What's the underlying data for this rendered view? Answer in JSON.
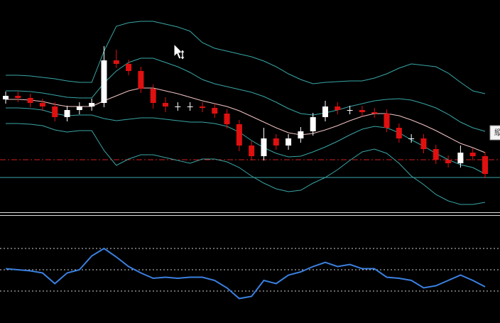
{
  "chart_data": [
    {
      "type": "candlestick",
      "ylim": [
        0,
        300
      ],
      "up_color": "#ffffff",
      "down_color": "#e01010",
      "open": [
        160,
        165,
        162,
        155,
        150,
        135,
        145,
        150,
        155,
        215,
        210,
        200,
        175,
        155,
        150,
        150,
        150,
        148,
        140,
        125,
        95,
        80,
        105,
        95,
        105,
        115,
        135,
        150,
        145,
        145,
        142,
        140,
        120,
        105,
        105,
        90,
        75,
        70,
        85,
        80
      ],
      "high": [
        171,
        171,
        168,
        161,
        156,
        151,
        156,
        161,
        235,
        230,
        216,
        206,
        181,
        163,
        156,
        156,
        156,
        154,
        146,
        131,
        101,
        120,
        111,
        111,
        121,
        141,
        158,
        156,
        151,
        151,
        148,
        146,
        126,
        111,
        111,
        96,
        81,
        95,
        91,
        86
      ],
      "low": [
        154,
        156,
        149,
        144,
        129,
        129,
        139,
        144,
        149,
        204,
        194,
        169,
        147,
        142,
        144,
        144,
        142,
        134,
        119,
        87,
        74,
        74,
        89,
        89,
        99,
        109,
        129,
        139,
        139,
        136,
        134,
        114,
        99,
        99,
        84,
        69,
        64,
        64,
        74,
        49
      ],
      "close": [
        165,
        162,
        155,
        150,
        135,
        145,
        150,
        155,
        215,
        210,
        200,
        175,
        155,
        150,
        150,
        150,
        148,
        140,
        125,
        95,
        80,
        105,
        95,
        105,
        115,
        135,
        150,
        145,
        145,
        142,
        140,
        120,
        105,
        105,
        90,
        75,
        70,
        85,
        80,
        55
      ],
      "series": [
        {
          "color": "#f2c4c4",
          "values": [
            160,
            160,
            159,
            157,
            153,
            150,
            150,
            150,
            158,
            165,
            172,
            176,
            176,
            172,
            168,
            163,
            158,
            154,
            150,
            144,
            136,
            128,
            120,
            113,
            110,
            112,
            117,
            123,
            130,
            136,
            140,
            140,
            137,
            131,
            124,
            116,
            107,
            98,
            92,
            85
          ]
        },
        {
          "color": "#3aa6a6",
          "values": [
            172,
            172,
            171,
            169,
            166,
            163,
            162,
            162,
            183,
            200,
            212,
            218,
            218,
            212,
            206,
            198,
            188,
            182,
            178,
            174,
            170,
            164,
            156,
            147,
            140,
            138,
            141,
            145,
            150,
            154,
            158,
            160,
            161,
            159,
            154,
            148,
            139,
            128,
            120,
            115
          ]
        },
        {
          "color": "#3aa6a6",
          "values": [
            148,
            148,
            147,
            145,
            140,
            137,
            138,
            138,
            133,
            130,
            132,
            134,
            134,
            132,
            130,
            128,
            128,
            126,
            122,
            114,
            102,
            92,
            84,
            79,
            80,
            86,
            93,
            101,
            110,
            118,
            122,
            120,
            113,
            103,
            94,
            84,
            75,
            68,
            64,
            55
          ]
        },
        {
          "color": "#3aa6a6",
          "values": [
            194,
            194,
            193,
            191,
            189,
            186,
            184,
            184,
            228,
            263,
            268,
            270,
            270,
            266,
            262,
            256,
            240,
            232,
            228,
            224,
            220,
            214,
            206,
            196,
            188,
            182,
            184,
            185,
            186,
            186,
            190,
            196,
            204,
            210,
            208,
            206,
            197,
            184,
            172,
            168
          ]
        },
        {
          "color": "#3aa6a6",
          "values": [
            126,
            126,
            125,
            123,
            117,
            114,
            116,
            116,
            88,
            67,
            76,
            82,
            82,
            78,
            74,
            70,
            76,
            76,
            72,
            64,
            52,
            42,
            34,
            30,
            32,
            42,
            50,
            61,
            74,
            86,
            90,
            84,
            70,
            52,
            40,
            26,
            17,
            12,
            12,
            15
          ]
        }
      ],
      "hlines": [
        {
          "value": 75,
          "color": "#d02020",
          "dash": "8 3 2 3"
        },
        {
          "value": 50,
          "color": "#3aa6a6",
          "dash": ""
        }
      ],
      "side_label": "縦"
    },
    {
      "type": "line",
      "ylim": [
        0,
        100
      ],
      "series": [
        {
          "color": "#3b80e0",
          "values": [
            51,
            50,
            49,
            47,
            37,
            47,
            50,
            63,
            70,
            62,
            53,
            47,
            42,
            43,
            42,
            43,
            43,
            40,
            33,
            23,
            25,
            40,
            37,
            45,
            48,
            53,
            57,
            53,
            55,
            51,
            51,
            43,
            42,
            40,
            33,
            35,
            40,
            45,
            40,
            34
          ]
        }
      ],
      "hlines": [
        {
          "value": 70,
          "color": "#cfcfcf",
          "dash": "2 3"
        },
        {
          "value": 50,
          "color": "#cfcfcf",
          "dash": "2 3"
        },
        {
          "value": 30,
          "color": "#cfcfcf",
          "dash": "2 3"
        }
      ]
    }
  ]
}
